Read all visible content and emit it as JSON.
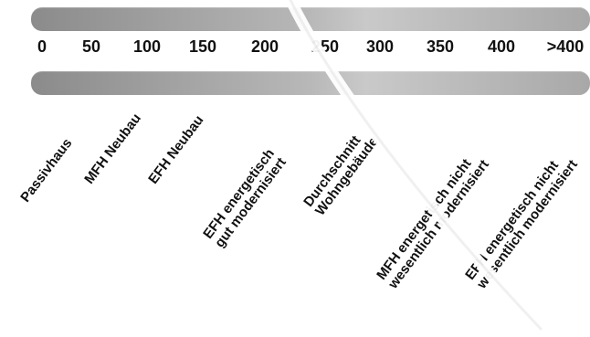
{
  "scale": {
    "ticks": [
      "0",
      "50",
      "100",
      "150",
      "200",
      "250",
      "300",
      "350",
      "400",
      ">400"
    ],
    "labels": [
      {
        "lines": [
          "Passivhaus"
        ]
      },
      {
        "lines": [
          "MFH Neubau"
        ]
      },
      {
        "lines": [
          "EFH Neubau"
        ]
      },
      {
        "lines": [
          "EFH energetisch",
          "gut modernisiert"
        ]
      },
      {
        "lines": [
          "Durchschnitt",
          "Wohngebäude"
        ]
      },
      {
        "lines": [
          "MFH energetisch nicht",
          "wesentlich modernisiert"
        ]
      },
      {
        "lines": [
          "EFH energetisch nicht",
          "wesentlich modernisiert"
        ]
      }
    ]
  }
}
